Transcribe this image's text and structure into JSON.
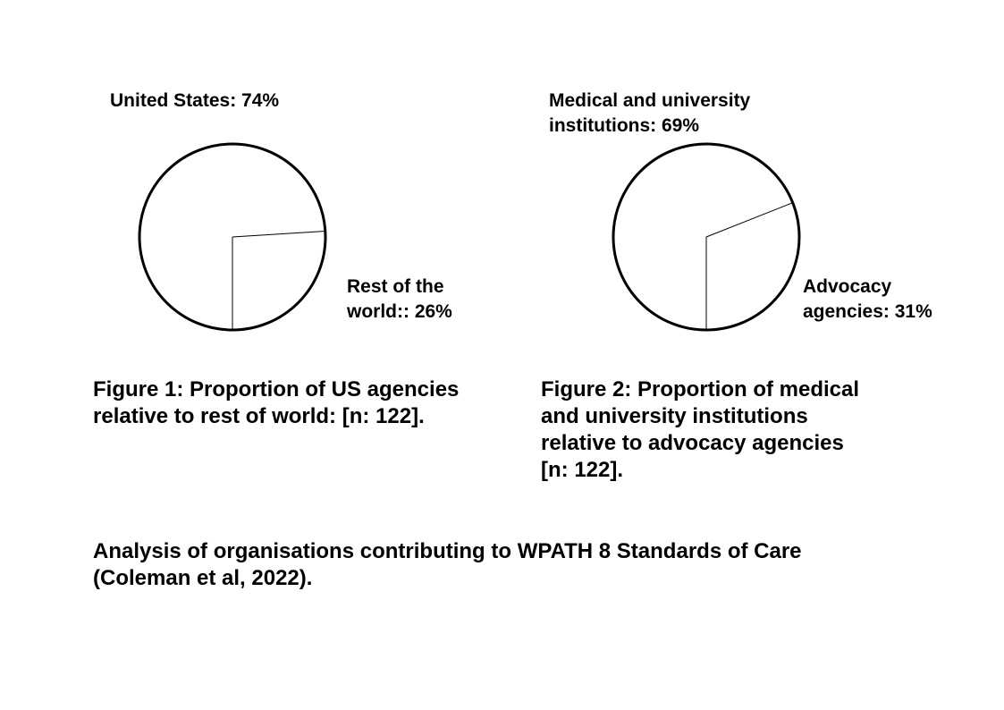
{
  "chart_data": [
    {
      "type": "pie",
      "slices": [
        {
          "label": "United States: 74%",
          "value": 74
        },
        {
          "label": "Rest of the\nworld:: 26%",
          "value": 26
        }
      ],
      "caption": "Figure 1: Proportion of US agencies\nrelative to rest of world: [n: 122].",
      "colors": {
        "fill": "#ffffff",
        "stroke": "#000000"
      }
    },
    {
      "type": "pie",
      "slices": [
        {
          "label": "Medical and university\ninstitutions: 69%",
          "value": 69
        },
        {
          "label": "Advocacy\nagencies: 31%",
          "value": 31
        }
      ],
      "caption": "Figure 2: Proportion of medical\nand university institutions\nrelative to advocacy agencies\n[n: 122].",
      "colors": {
        "fill": "#ffffff",
        "stroke": "#000000"
      }
    }
  ],
  "footer": {
    "text": "Analysis of organisations contributing to WPATH 8 Standards of Care\n(Coleman et al, 2022)."
  }
}
